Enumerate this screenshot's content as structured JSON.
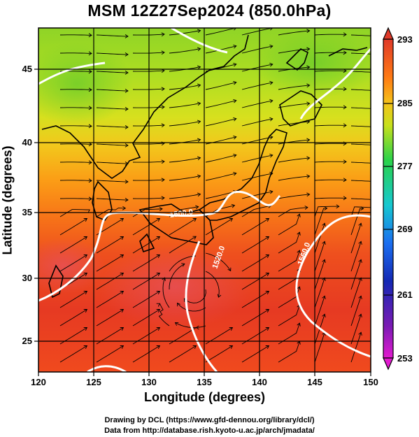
{
  "title": "MSM 12Z27Sep2024 (850.0hPa)",
  "axes": {
    "xlabel": "Longitude (degrees)",
    "ylabel": "Latitude  (degrees)",
    "xticks": [
      "120",
      "125",
      "130",
      "135",
      "140",
      "145",
      "150"
    ],
    "yticks": [
      "25",
      "30",
      "35",
      "40",
      "45"
    ]
  },
  "colorbar": {
    "labels": [
      "293",
      "285",
      "277",
      "269",
      "261",
      "253"
    ],
    "colors": [
      "#e03a2a",
      "#ff7a14",
      "#f5c21a",
      "#c8e01c",
      "#2ad24a",
      "#16c8d0",
      "#1a6ef0",
      "#1428b4",
      "#7a1ab4",
      "#e21ad0"
    ]
  },
  "contour_labels": [
    "1500.0",
    "1520.0",
    "1560.0"
  ],
  "credits": {
    "line1": "Drawing by DCL (https://www.gfd-dennou.org/library/dcl/)",
    "line2": "Data from http://database.rish.kyoto-u.ac.jp/arch/jmadata/"
  },
  "chart_data": {
    "type": "heatmap",
    "title": "MSM 12Z27Sep2024 (850.0hPa)",
    "xlabel": "Longitude (degrees)",
    "ylabel": "Latitude  (degrees)",
    "xlim": [
      120,
      150
    ],
    "ylim": [
      22.4,
      48
    ],
    "color_range": [
      253,
      293
    ],
    "colorbar_ticks": [
      293,
      285,
      277,
      269,
      261,
      253
    ],
    "overlays": [
      "streamlines",
      "geopotential contours",
      "coastlines"
    ],
    "grid": true
  }
}
